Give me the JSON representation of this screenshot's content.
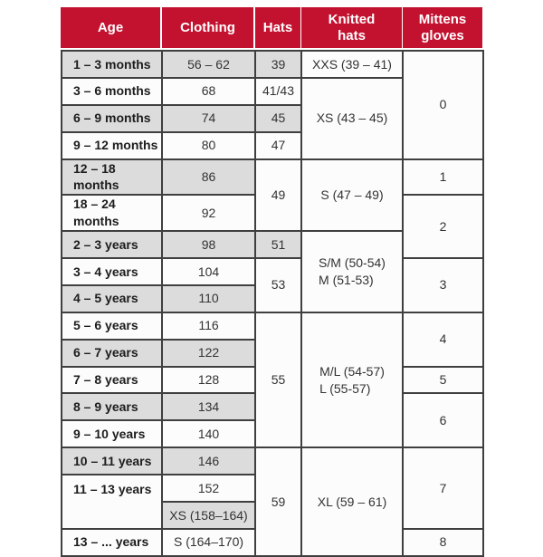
{
  "colors": {
    "header_bg": "#c31230",
    "header_text": "#ffffff",
    "shaded_cell": "#dcdcdc",
    "plain_cell": "#fcfcfc",
    "border": "#3f3f3f"
  },
  "chart_data": {
    "type": "table",
    "columns": [
      {
        "id": "age",
        "label": "Age"
      },
      {
        "id": "clothing",
        "label": "Clothing"
      },
      {
        "id": "hats",
        "label": "Hats"
      },
      {
        "id": "knitted",
        "label": "Knitted\nhats"
      },
      {
        "id": "mittens",
        "label": "Mittens\ngloves"
      }
    ],
    "rows": [
      {
        "cells": [
          {
            "col": "age",
            "text": "1 – 3 months",
            "shade": true
          },
          {
            "col": "clothing",
            "text": "56 – 62",
            "shade": true
          },
          {
            "col": "hats",
            "text": "39",
            "shade": true
          },
          {
            "col": "knitted",
            "text": "XXS (39 – 41)"
          },
          {
            "col": "mittens",
            "text": "0",
            "rowspan": 4
          }
        ]
      },
      {
        "cells": [
          {
            "col": "age",
            "text": "3 – 6 months"
          },
          {
            "col": "clothing",
            "text": "68"
          },
          {
            "col": "hats",
            "text": "41/43"
          },
          {
            "col": "knitted",
            "text": "XS (43 – 45)",
            "rowspan": 3
          }
        ]
      },
      {
        "cells": [
          {
            "col": "age",
            "text": "6 – 9 months",
            "shade": true
          },
          {
            "col": "clothing",
            "text": "74",
            "shade": true
          },
          {
            "col": "hats",
            "text": "45",
            "shade": true
          }
        ]
      },
      {
        "cells": [
          {
            "col": "age",
            "text": "9 – 12 months"
          },
          {
            "col": "clothing",
            "text": "80"
          },
          {
            "col": "hats",
            "text": "47"
          }
        ]
      },
      {
        "cells": [
          {
            "col": "age",
            "text": "12 – 18 months",
            "shade": true
          },
          {
            "col": "clothing",
            "text": "86",
            "shade": true
          },
          {
            "col": "hats",
            "text": "49",
            "rowspan": 2
          },
          {
            "col": "knitted",
            "text": "S (47 – 49)",
            "rowspan": 2
          },
          {
            "col": "mittens",
            "text": "1"
          }
        ]
      },
      {
        "cells": [
          {
            "col": "age",
            "text": "18 – 24 months"
          },
          {
            "col": "clothing",
            "text": "92"
          },
          {
            "col": "mittens",
            "text": "2",
            "rowspan": 2
          }
        ]
      },
      {
        "cells": [
          {
            "col": "age",
            "text": "2 – 3 years",
            "shade": true
          },
          {
            "col": "clothing",
            "text": "98",
            "shade": true
          },
          {
            "col": "hats",
            "text": "51",
            "shade": true
          },
          {
            "col": "knitted",
            "text": "S/M (50-54)\nM (51-53)",
            "rowspan": 3
          }
        ]
      },
      {
        "cells": [
          {
            "col": "age",
            "text": "3 – 4 years"
          },
          {
            "col": "clothing",
            "text": "104"
          },
          {
            "col": "hats",
            "text": "53",
            "rowspan": 2
          },
          {
            "col": "mittens",
            "text": "3",
            "rowspan": 2
          }
        ]
      },
      {
        "cells": [
          {
            "col": "age",
            "text": "4 – 5 years",
            "shade": true
          },
          {
            "col": "clothing",
            "text": "110",
            "shade": true
          }
        ]
      },
      {
        "cells": [
          {
            "col": "age",
            "text": "5 – 6 years"
          },
          {
            "col": "clothing",
            "text": "116"
          },
          {
            "col": "hats",
            "text": "55",
            "rowspan": 5
          },
          {
            "col": "knitted",
            "text": "M/L (54-57)\nL (55-57)",
            "rowspan": 5
          },
          {
            "col": "mittens",
            "text": "4",
            "rowspan": 2
          }
        ]
      },
      {
        "cells": [
          {
            "col": "age",
            "text": "6 – 7 years",
            "shade": true
          },
          {
            "col": "clothing",
            "text": "122",
            "shade": true
          }
        ]
      },
      {
        "cells": [
          {
            "col": "age",
            "text": "7 – 8 years"
          },
          {
            "col": "clothing",
            "text": "128"
          },
          {
            "col": "mittens",
            "text": "5"
          }
        ]
      },
      {
        "cells": [
          {
            "col": "age",
            "text": "8 – 9 years",
            "shade": true
          },
          {
            "col": "clothing",
            "text": "134",
            "shade": true
          },
          {
            "col": "mittens",
            "text": "6",
            "rowspan": 2
          }
        ]
      },
      {
        "cells": [
          {
            "col": "age",
            "text": "9 – 10 years"
          },
          {
            "col": "clothing",
            "text": "140"
          }
        ]
      },
      {
        "cells": [
          {
            "col": "age",
            "text": "10 – 11 years",
            "shade": true
          },
          {
            "col": "clothing",
            "text": "146",
            "shade": true
          },
          {
            "col": "hats",
            "text": "59",
            "rowspan": 4
          },
          {
            "col": "knitted",
            "text": "XL (59 – 61)",
            "rowspan": 4
          },
          {
            "col": "mittens",
            "text": "7",
            "rowspan": 3
          }
        ]
      },
      {
        "cells": [
          {
            "col": "age",
            "text": "11 – 13 years",
            "rowspan": 2
          },
          {
            "col": "clothing",
            "text": "152"
          }
        ]
      },
      {
        "cells": [
          {
            "col": "clothing",
            "text": "XS (158–164)",
            "shade": true
          }
        ]
      },
      {
        "cells": [
          {
            "col": "age",
            "text": "13 – ... years"
          },
          {
            "col": "clothing",
            "text": "S (164–170)"
          },
          {
            "col": "mittens",
            "text": "8"
          }
        ]
      }
    ]
  }
}
